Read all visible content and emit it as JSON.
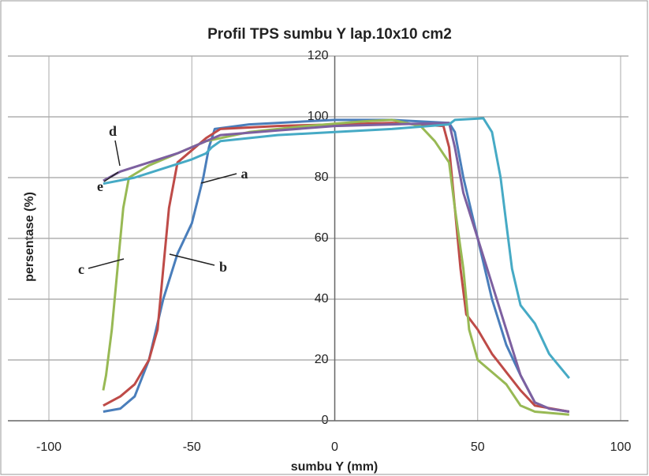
{
  "chart_data": {
    "type": "line",
    "title": "Profil TPS sumbu Y lap.10x10 cm2",
    "x_label": "sumbu Y (mm)",
    "y_label": "persentase (%)",
    "xlim": [
      -100,
      100
    ],
    "xticks": [
      -100,
      -50,
      0,
      50,
      100
    ],
    "ylim": [
      0,
      120
    ],
    "yticks": [
      0,
      20,
      40,
      60,
      80,
      100,
      120
    ],
    "grid": true,
    "series": [
      {
        "name": "a",
        "color": "#4a7ebb",
        "x": [
          -81,
          -75,
          -70,
          -65,
          -60,
          -55,
          -50,
          -46,
          -44,
          -42,
          -30,
          -10,
          0,
          20,
          40,
          42,
          45,
          50,
          55,
          60,
          65,
          70,
          75,
          82
        ],
        "values": [
          3,
          4,
          8,
          20,
          40,
          55,
          65,
          80,
          90,
          96,
          97.5,
          98.5,
          99,
          99,
          98,
          95,
          80,
          60,
          40,
          25,
          15,
          6,
          4,
          3
        ]
      },
      {
        "name": "b",
        "color": "#be4b48",
        "x": [
          -81,
          -75,
          -70,
          -65,
          -62,
          -60,
          -58,
          -55,
          -50,
          -45,
          -40,
          -20,
          0,
          20,
          38,
          40,
          42,
          44,
          46,
          50,
          55,
          60,
          65,
          70,
          82
        ],
        "values": [
          5,
          8,
          12,
          20,
          30,
          50,
          70,
          85,
          89,
          93,
          96,
          97,
          97.5,
          98,
          97,
          90,
          70,
          50,
          35,
          30,
          22,
          16,
          10,
          5,
          3
        ]
      },
      {
        "name": "c",
        "color": "#98b954",
        "x": [
          -81,
          -80,
          -78,
          -76,
          -74,
          -72,
          -65,
          -55,
          -45,
          -30,
          -10,
          10,
          20,
          30,
          35,
          40,
          42,
          45,
          47,
          50,
          55,
          60,
          65,
          70,
          82
        ],
        "values": [
          10,
          15,
          30,
          50,
          70,
          80,
          84,
          88,
          92,
          95,
          97,
          98.5,
          99,
          97,
          92,
          85,
          70,
          50,
          30,
          20,
          16,
          12,
          5,
          3,
          2
        ]
      },
      {
        "name": "d",
        "color": "#7d60a0",
        "x": [
          -81,
          -75,
          -65,
          -55,
          -45,
          -40,
          -20,
          0,
          20,
          40,
          42,
          45,
          50,
          55,
          60,
          65,
          70,
          75,
          82
        ],
        "values": [
          79,
          82,
          85,
          88,
          92,
          94,
          95.5,
          97,
          97.5,
          98,
          90,
          75,
          60,
          45,
          30,
          15,
          6,
          4,
          3
        ]
      },
      {
        "name": "e",
        "color": "#46aac5",
        "x": [
          -81,
          -70,
          -60,
          -50,
          -45,
          -43,
          -40,
          -20,
          0,
          20,
          40,
          42,
          52,
          55,
          58,
          60,
          62,
          65,
          70,
          75,
          82
        ],
        "values": [
          78,
          80,
          83,
          86,
          88,
          90,
          92,
          94,
          95,
          96,
          97.5,
          99,
          99.5,
          95,
          80,
          65,
          50,
          38,
          32,
          22,
          14
        ]
      }
    ]
  }
}
